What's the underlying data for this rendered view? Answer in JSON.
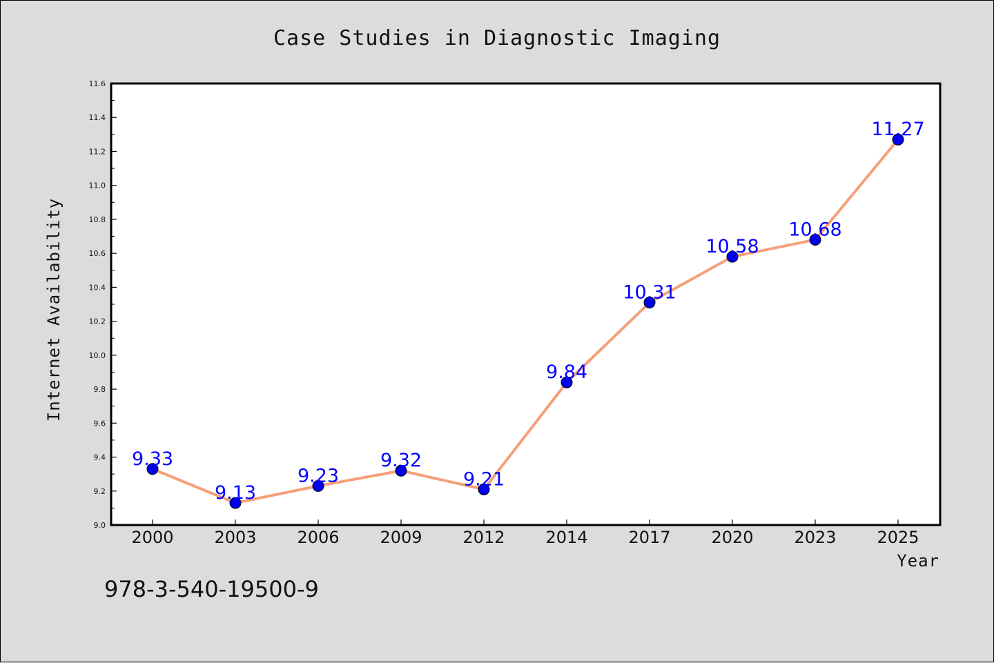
{
  "chart_data": {
    "type": "line",
    "title": "Case Studies in Diagnostic Imaging",
    "xlabel": "Year",
    "ylabel": "Internet Availability",
    "categories": [
      "2000",
      "2003",
      "2006",
      "2009",
      "2012",
      "2014",
      "2017",
      "2020",
      "2023",
      "2025"
    ],
    "series": [
      {
        "values": [
          9.33,
          9.13,
          9.23,
          9.32,
          9.21,
          9.84,
          10.31,
          10.58,
          10.68,
          11.27
        ],
        "labels": [
          "9.33",
          "9.13",
          "9.23",
          "9.32",
          "9.21",
          "9.84",
          "10.31",
          "10.58",
          "10.68",
          "11.27"
        ],
        "line_color": "#f5a07a",
        "marker_color": "#0000ee"
      }
    ],
    "ylim": [
      9.0,
      11.6
    ],
    "yticks": [
      "9.0",
      "9.2",
      "9.4",
      "9.6",
      "9.8",
      "10.0",
      "10.2",
      "10.4",
      "10.6",
      "10.8",
      "11.0",
      "11.2",
      "11.4",
      "11.6"
    ],
    "grid": false,
    "legend": "none"
  },
  "footer": {
    "isbn": "978-3-540-19500-9"
  }
}
